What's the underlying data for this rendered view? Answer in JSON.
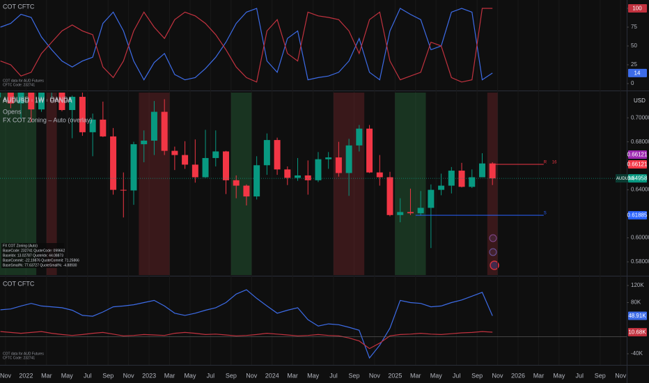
{
  "time_axis_labels": [
    "Nov",
    "2022",
    "Mar",
    "May",
    "Jul",
    "Sep",
    "Nov",
    "2023",
    "Mar",
    "May",
    "Jul",
    "Sep",
    "Nov",
    "2024",
    "Mar",
    "May",
    "Jul",
    "Sep",
    "Nov",
    "2025",
    "Mar",
    "May",
    "Jul",
    "Sep",
    "Nov",
    "2026",
    "Mar",
    "May",
    "Jul",
    "Sep",
    "Nov"
  ],
  "chart_data": [
    {
      "type": "line",
      "title": "COT CFTC",
      "notes": [
        "COT data for AUD Futures",
        "CFTC Code: 232741"
      ],
      "ylim": [
        -7.4,
        111.1
      ],
      "yticks": [
        0,
        25,
        50,
        75,
        100
      ],
      "series": [
        {
          "color": "#3d6ce8",
          "values": [
            75,
            80,
            92,
            88,
            62,
            45,
            30,
            22,
            30,
            35,
            80,
            95,
            70,
            30,
            5,
            28,
            40,
            12,
            5,
            8,
            20,
            35,
            55,
            80,
            95,
            100,
            30,
            15,
            60,
            70,
            5,
            8,
            10,
            15,
            30,
            60,
            15,
            5,
            70,
            100,
            92,
            85,
            45,
            50,
            95,
            100,
            95,
            5,
            14
          ]
        },
        {
          "color": "#c2323f",
          "values": [
            30,
            25,
            10,
            15,
            40,
            55,
            70,
            78,
            70,
            65,
            22,
            8,
            30,
            70,
            95,
            75,
            60,
            85,
            95,
            90,
            80,
            65,
            45,
            22,
            8,
            2,
            70,
            85,
            40,
            30,
            95,
            90,
            88,
            85,
            70,
            40,
            85,
            95,
            30,
            5,
            10,
            15,
            55,
            50,
            8,
            2,
            5,
            100,
            100
          ]
        }
      ]
    },
    {
      "type": "candlestick",
      "title": "AUDUSD · 1W · OANDA",
      "subtitles": [
        "Opens",
        "FX COT Zoning – Auto (overlay)"
      ],
      "currency": "USD",
      "up_color": "#089981",
      "down_color": "#f23645",
      "ylim": [
        0.569,
        0.721
      ],
      "yticks": [
        {
          "value": 0.58,
          "label": "0.58000"
        },
        {
          "value": 0.6,
          "label": "0.60000"
        },
        {
          "value": 0.64,
          "label": "0.64000"
        },
        {
          "value": 0.68,
          "label": "0.68000"
        },
        {
          "value": 0.7,
          "label": "0.70000"
        }
      ],
      "symbol": "AUDUSD",
      "ohlc": [
        [
          0.7225,
          0.7545,
          0.717,
          0.752
        ],
        [
          0.752,
          0.7555,
          0.708,
          0.712
        ],
        [
          0.712,
          0.7275,
          0.6995,
          0.7265
        ],
        [
          0.7265,
          0.7315,
          0.6965,
          0.707
        ],
        [
          0.707,
          0.725,
          0.705,
          0.7265
        ],
        [
          0.7265,
          0.754,
          0.7165,
          0.7485
        ],
        [
          0.7485,
          0.766,
          0.7055,
          0.7065
        ],
        [
          0.7065,
          0.7185,
          0.683,
          0.7175
        ],
        [
          0.7175,
          0.728,
          0.685,
          0.688
        ],
        [
          0.688,
          0.7035,
          0.668,
          0.6985
        ],
        [
          0.6985,
          0.7135,
          0.684,
          0.6845
        ],
        [
          0.6845,
          0.6915,
          0.636,
          0.64
        ],
        [
          0.64,
          0.6545,
          0.617,
          0.6395
        ],
        [
          0.6395,
          0.68,
          0.6275,
          0.678
        ],
        [
          0.678,
          0.6895,
          0.663,
          0.681
        ],
        [
          0.681,
          0.714,
          0.669,
          0.705
        ],
        [
          0.705,
          0.7155,
          0.669,
          0.6725
        ],
        [
          0.6725,
          0.676,
          0.6565,
          0.669
        ],
        [
          0.669,
          0.6805,
          0.6575,
          0.661
        ],
        [
          0.661,
          0.682,
          0.646,
          0.6505
        ],
        [
          0.6505,
          0.69,
          0.65,
          0.6665
        ],
        [
          0.6665,
          0.6895,
          0.6595,
          0.672
        ],
        [
          0.672,
          0.6725,
          0.6365,
          0.648
        ],
        [
          0.648,
          0.652,
          0.633,
          0.6435
        ],
        [
          0.6435,
          0.6445,
          0.627,
          0.6345
        ],
        [
          0.6345,
          0.668,
          0.632,
          0.6605
        ],
        [
          0.6605,
          0.687,
          0.6525,
          0.6815
        ],
        [
          0.6815,
          0.6835,
          0.6525,
          0.657
        ],
        [
          0.657,
          0.6595,
          0.644,
          0.65
        ],
        [
          0.65,
          0.6665,
          0.6475,
          0.652
        ],
        [
          0.652,
          0.6645,
          0.636,
          0.648
        ],
        [
          0.648,
          0.6715,
          0.6465,
          0.6655
        ],
        [
          0.6655,
          0.6715,
          0.6575,
          0.667
        ],
        [
          0.667,
          0.68,
          0.651,
          0.654
        ],
        [
          0.654,
          0.6825,
          0.635,
          0.677
        ],
        [
          0.677,
          0.694,
          0.672,
          0.691
        ],
        [
          0.691,
          0.694,
          0.654,
          0.6545
        ],
        [
          0.6545,
          0.669,
          0.6435,
          0.6505
        ],
        [
          0.6505,
          0.655,
          0.618,
          0.619
        ],
        [
          0.619,
          0.633,
          0.613,
          0.6215
        ],
        [
          0.6215,
          0.641,
          0.619,
          0.6205
        ],
        [
          0.6205,
          0.639,
          0.6185,
          0.625
        ],
        [
          0.625,
          0.6445,
          0.5915,
          0.64
        ],
        [
          0.64,
          0.6535,
          0.6355,
          0.6435
        ],
        [
          0.6435,
          0.659,
          0.637,
          0.656
        ],
        [
          0.656,
          0.6625,
          0.642,
          0.6425
        ],
        [
          0.6425,
          0.657,
          0.6415,
          0.6505
        ],
        [
          0.6505,
          0.6705,
          0.652,
          0.662
        ],
        [
          0.662,
          0.663,
          0.644,
          0.64958
        ]
      ],
      "zones": [
        {
          "color": "#2f7a45",
          "from": 0,
          "to": 3
        },
        {
          "color": "#8a2a30",
          "from": 5,
          "to": 5
        },
        {
          "color": "#8a2a30",
          "from": 14,
          "to": 16
        },
        {
          "color": "#2f7a45",
          "from": 23,
          "to": 24
        },
        {
          "color": "#8a2a30",
          "from": 33,
          "to": 35
        },
        {
          "color": "#2f7a45",
          "from": 39,
          "to": 41
        },
        {
          "color": "#8a2a30",
          "from": 48,
          "to": 48
        }
      ],
      "levels": [
        {
          "value": 0.66121,
          "color": "#9c27b0"
        },
        {
          "value": 0.66121,
          "color": "#f23645",
          "from": 48,
          "to": 53,
          "texts": [
            "R",
            "16"
          ]
        },
        {
          "value": 0.61885,
          "color": "#2962ff",
          "from": 40.5,
          "to": 53,
          "texts": [
            "S"
          ]
        }
      ],
      "info_lines": [
        "FX COT Zoning (Auto)",
        "BaseCode: 232741 QuoteCode: 099662",
        "BaseIdx: 13.02787 QuoteIdx: 44.08873",
        "BaseCommit: -22.19876 QuoteCommit: 71.25866",
        "BaseSmall%: 77.63727 QuoteSmall%: -4.88930"
      ]
    },
    {
      "type": "line",
      "title": "COT CFTC",
      "notes": [
        "COT data for AUD Futures",
        "CFTC Code: 232741"
      ],
      "ylim": [
        -59600,
        139600
      ],
      "yticks": [
        {
          "value": -40000,
          "label": "-40K"
        },
        {
          "value": 80000,
          "label": "80K"
        },
        {
          "value": 120000,
          "label": "120K"
        }
      ],
      "series": [
        {
          "color": "#3d6ce8",
          "values": [
            63000,
            65000,
            72000,
            78000,
            72000,
            70000,
            68000,
            62000,
            50000,
            48000,
            58000,
            70000,
            72000,
            75000,
            80000,
            85000,
            72000,
            55000,
            50000,
            55000,
            62000,
            68000,
            80000,
            100000,
            110000,
            90000,
            72000,
            55000,
            62000,
            68000,
            40000,
            25000,
            30000,
            28000,
            22000,
            15000,
            -50000,
            -20000,
            20000,
            85000,
            80000,
            78000,
            70000,
            72000,
            80000,
            86000,
            95000,
            104000,
            48910
          ],
          "value_labels": [
            null,
            null,
            null,
            null,
            null,
            null,
            null,
            null,
            null,
            null,
            null,
            null,
            null,
            null,
            null,
            null,
            null,
            null,
            null,
            null,
            null,
            null,
            null,
            null,
            null,
            null,
            null,
            null,
            null,
            null,
            null,
            null,
            null,
            null,
            null,
            null,
            null,
            null,
            null,
            null,
            null,
            null,
            null,
            null,
            null,
            null,
            null,
            null,
            "48.91K"
          ]
        },
        {
          "color": "#c2323f",
          "values": [
            12000,
            10000,
            8000,
            10000,
            12000,
            8000,
            5000,
            3000,
            5000,
            8000,
            10000,
            6000,
            2000,
            3000,
            5000,
            4000,
            3000,
            8000,
            10000,
            8000,
            5000,
            6000,
            4000,
            2000,
            3000,
            5000,
            8000,
            6000,
            4000,
            2000,
            3000,
            5000,
            3000,
            2000,
            -3000,
            -10000,
            -28000,
            -15000,
            2000,
            5000,
            6000,
            8000,
            6000,
            5000,
            7000,
            9000,
            10000,
            12000,
            10680
          ],
          "value_labels": [
            null,
            null,
            null,
            null,
            null,
            null,
            null,
            null,
            null,
            null,
            null,
            null,
            null,
            null,
            null,
            null,
            null,
            null,
            null,
            null,
            null,
            null,
            null,
            null,
            null,
            null,
            null,
            null,
            null,
            null,
            null,
            null,
            null,
            null,
            null,
            null,
            null,
            null,
            null,
            null,
            null,
            null,
            null,
            null,
            null,
            null,
            null,
            null,
            "10.68K"
          ]
        }
      ]
    }
  ]
}
